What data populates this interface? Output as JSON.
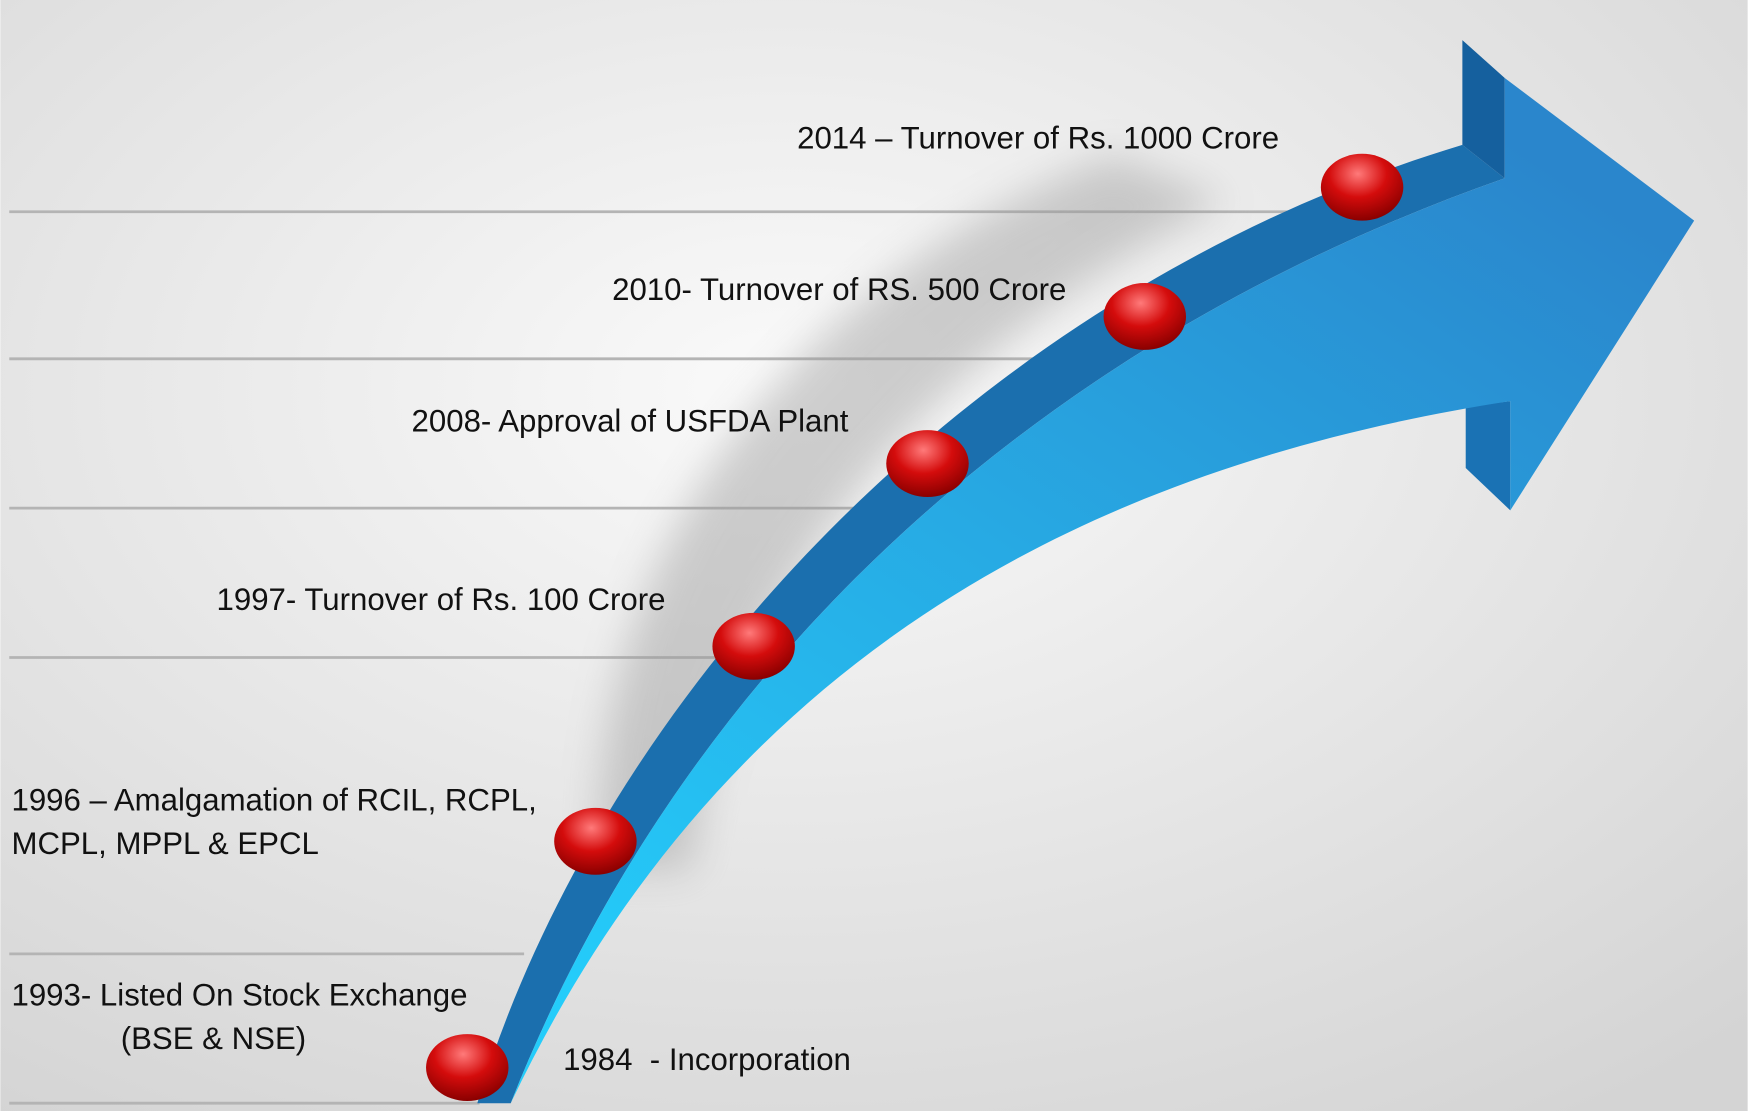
{
  "milestones": [
    {
      "lines": [
        "2014 – Turnover of Rs. 1000 Crore"
      ]
    },
    {
      "lines": [
        "2010- Turnover of RS. 500 Crore"
      ]
    },
    {
      "lines": [
        "2008- Approval of USFDA Plant"
      ]
    },
    {
      "lines": [
        "1997- Turnover of Rs. 100 Crore"
      ]
    },
    {
      "lines": [
        "1996 – Amalgamation of RCIL, RCPL,",
        "MCPL, MPPL & EPCL"
      ]
    },
    {
      "lines": [
        "1993- Listed On Stock Exchange",
        "(BSE & NSE)"
      ]
    },
    {
      "lines": [
        "1984  - Incorporation"
      ]
    }
  ]
}
